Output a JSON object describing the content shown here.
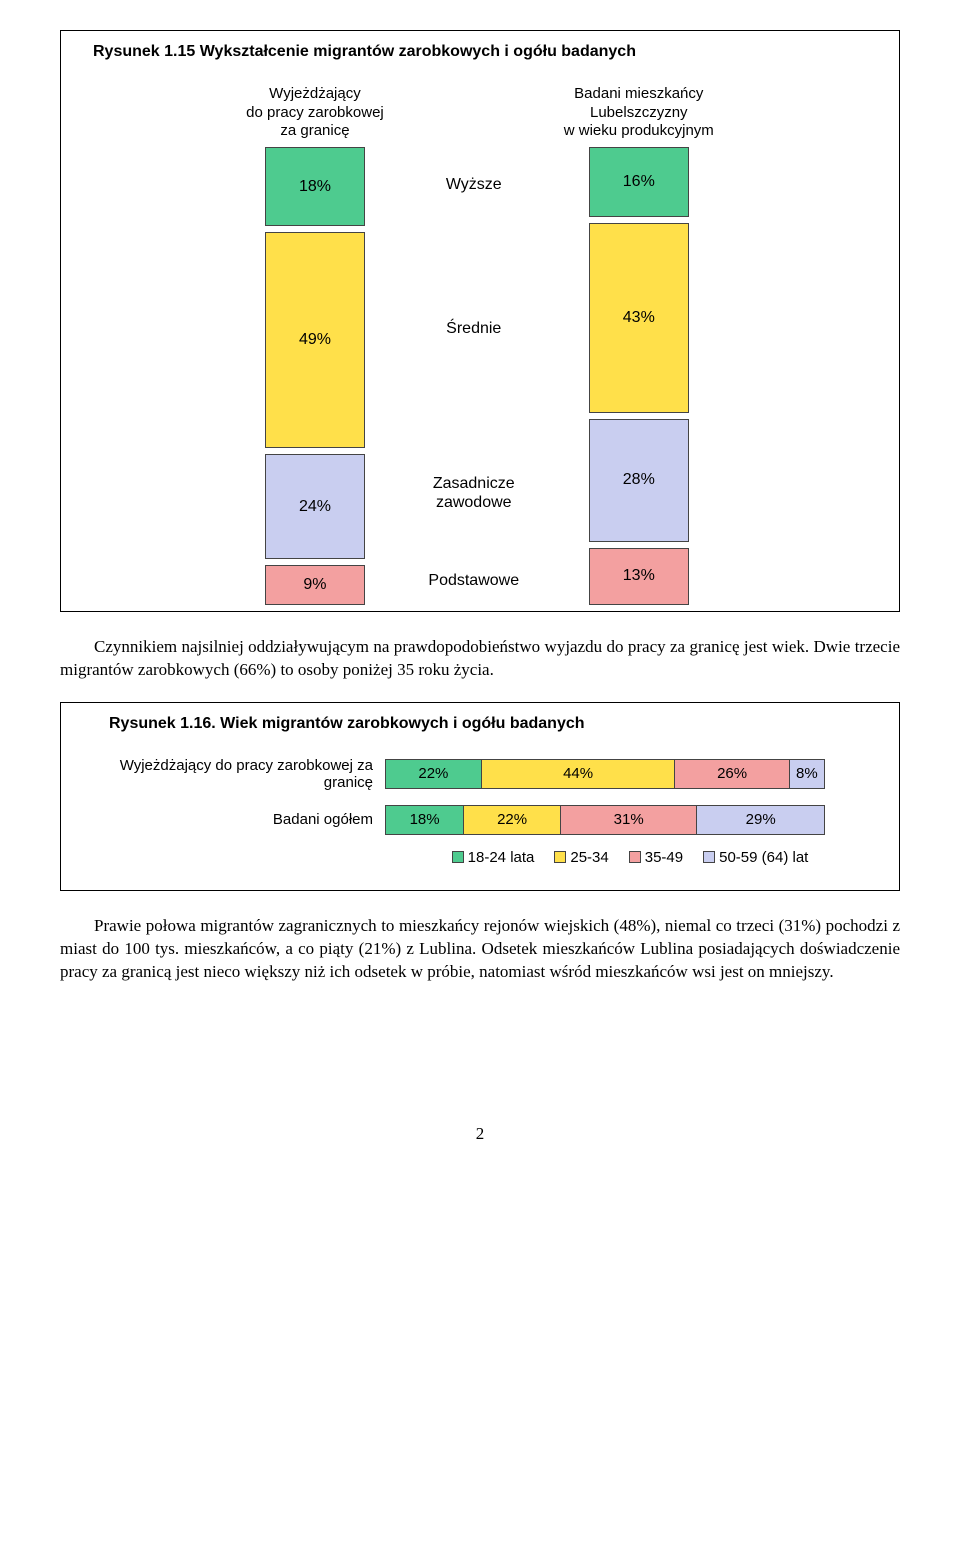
{
  "figure1": {
    "title": "Rysunek 1.15 Wykształcenie migrantów zarobkowych i ogółu badanych",
    "headers": {
      "left": "Wyjeżdżający\ndo pracy zarobkowej\nza granicę",
      "right": "Badani mieszkańcy\nLubelszczyzny\nw wieku produkcyjnym"
    },
    "rows": [
      {
        "label": "Wyższe",
        "left": "18%",
        "left_val": 18,
        "right": "16%",
        "right_val": 16,
        "color": "#4ecb8f"
      },
      {
        "label": "Średnie",
        "left": "49%",
        "left_val": 49,
        "right": "43%",
        "right_val": 43,
        "color": "#ffe04a"
      },
      {
        "label": "Zasadnicze\nzawodowe",
        "left": "24%",
        "left_val": 24,
        "right": "28%",
        "right_val": 28,
        "color": "#c9cef0"
      },
      {
        "label": "Podstawowe",
        "left": "9%",
        "left_val": 9,
        "right": "13%",
        "right_val": 13,
        "color": "#f3a0a0"
      }
    ]
  },
  "paragraph1": "Czynnikiem najsilniej oddziaływującym na prawdopodobieństwo wyjazdu do pracy za granicę jest wiek. Dwie trzecie migrantów zarobkowych (66%) to osoby poniżej 35 roku życia.",
  "figure2": {
    "title": "Rysunek 1.16. Wiek migrantów zarobkowych i ogółu badanych",
    "colors": [
      "#4ecb8f",
      "#ffe04a",
      "#f3a0a0",
      "#c9cef0"
    ],
    "legend": [
      "18-24 lata",
      "25-34",
      "35-49",
      "50-59 (64) lat"
    ],
    "rows": [
      {
        "label": "Wyjeżdżający do pracy zarobkowej za granicę",
        "values": [
          "22%",
          "44%",
          "26%",
          "8%"
        ],
        "widths": [
          22,
          44,
          26,
          8
        ]
      },
      {
        "label": "Badani ogółem",
        "values": [
          "18%",
          "22%",
          "31%",
          "29%"
        ],
        "widths": [
          18,
          22,
          31,
          29
        ]
      }
    ]
  },
  "paragraph2": "Prawie połowa migrantów zagranicznych to mieszkańcy rejonów wiejskich (48%), niemal co trzeci (31%) pochodzi z miast do 100 tys. mieszkańców, a co piąty (21%) z Lublina. Odsetek mieszkańców Lublina posiadających doświadczenie pracy za granicą jest nieco większy niż ich odsetek w próbie, natomiast wśród mieszkańców wsi jest on mniejszy.",
  "page_number": "2"
}
